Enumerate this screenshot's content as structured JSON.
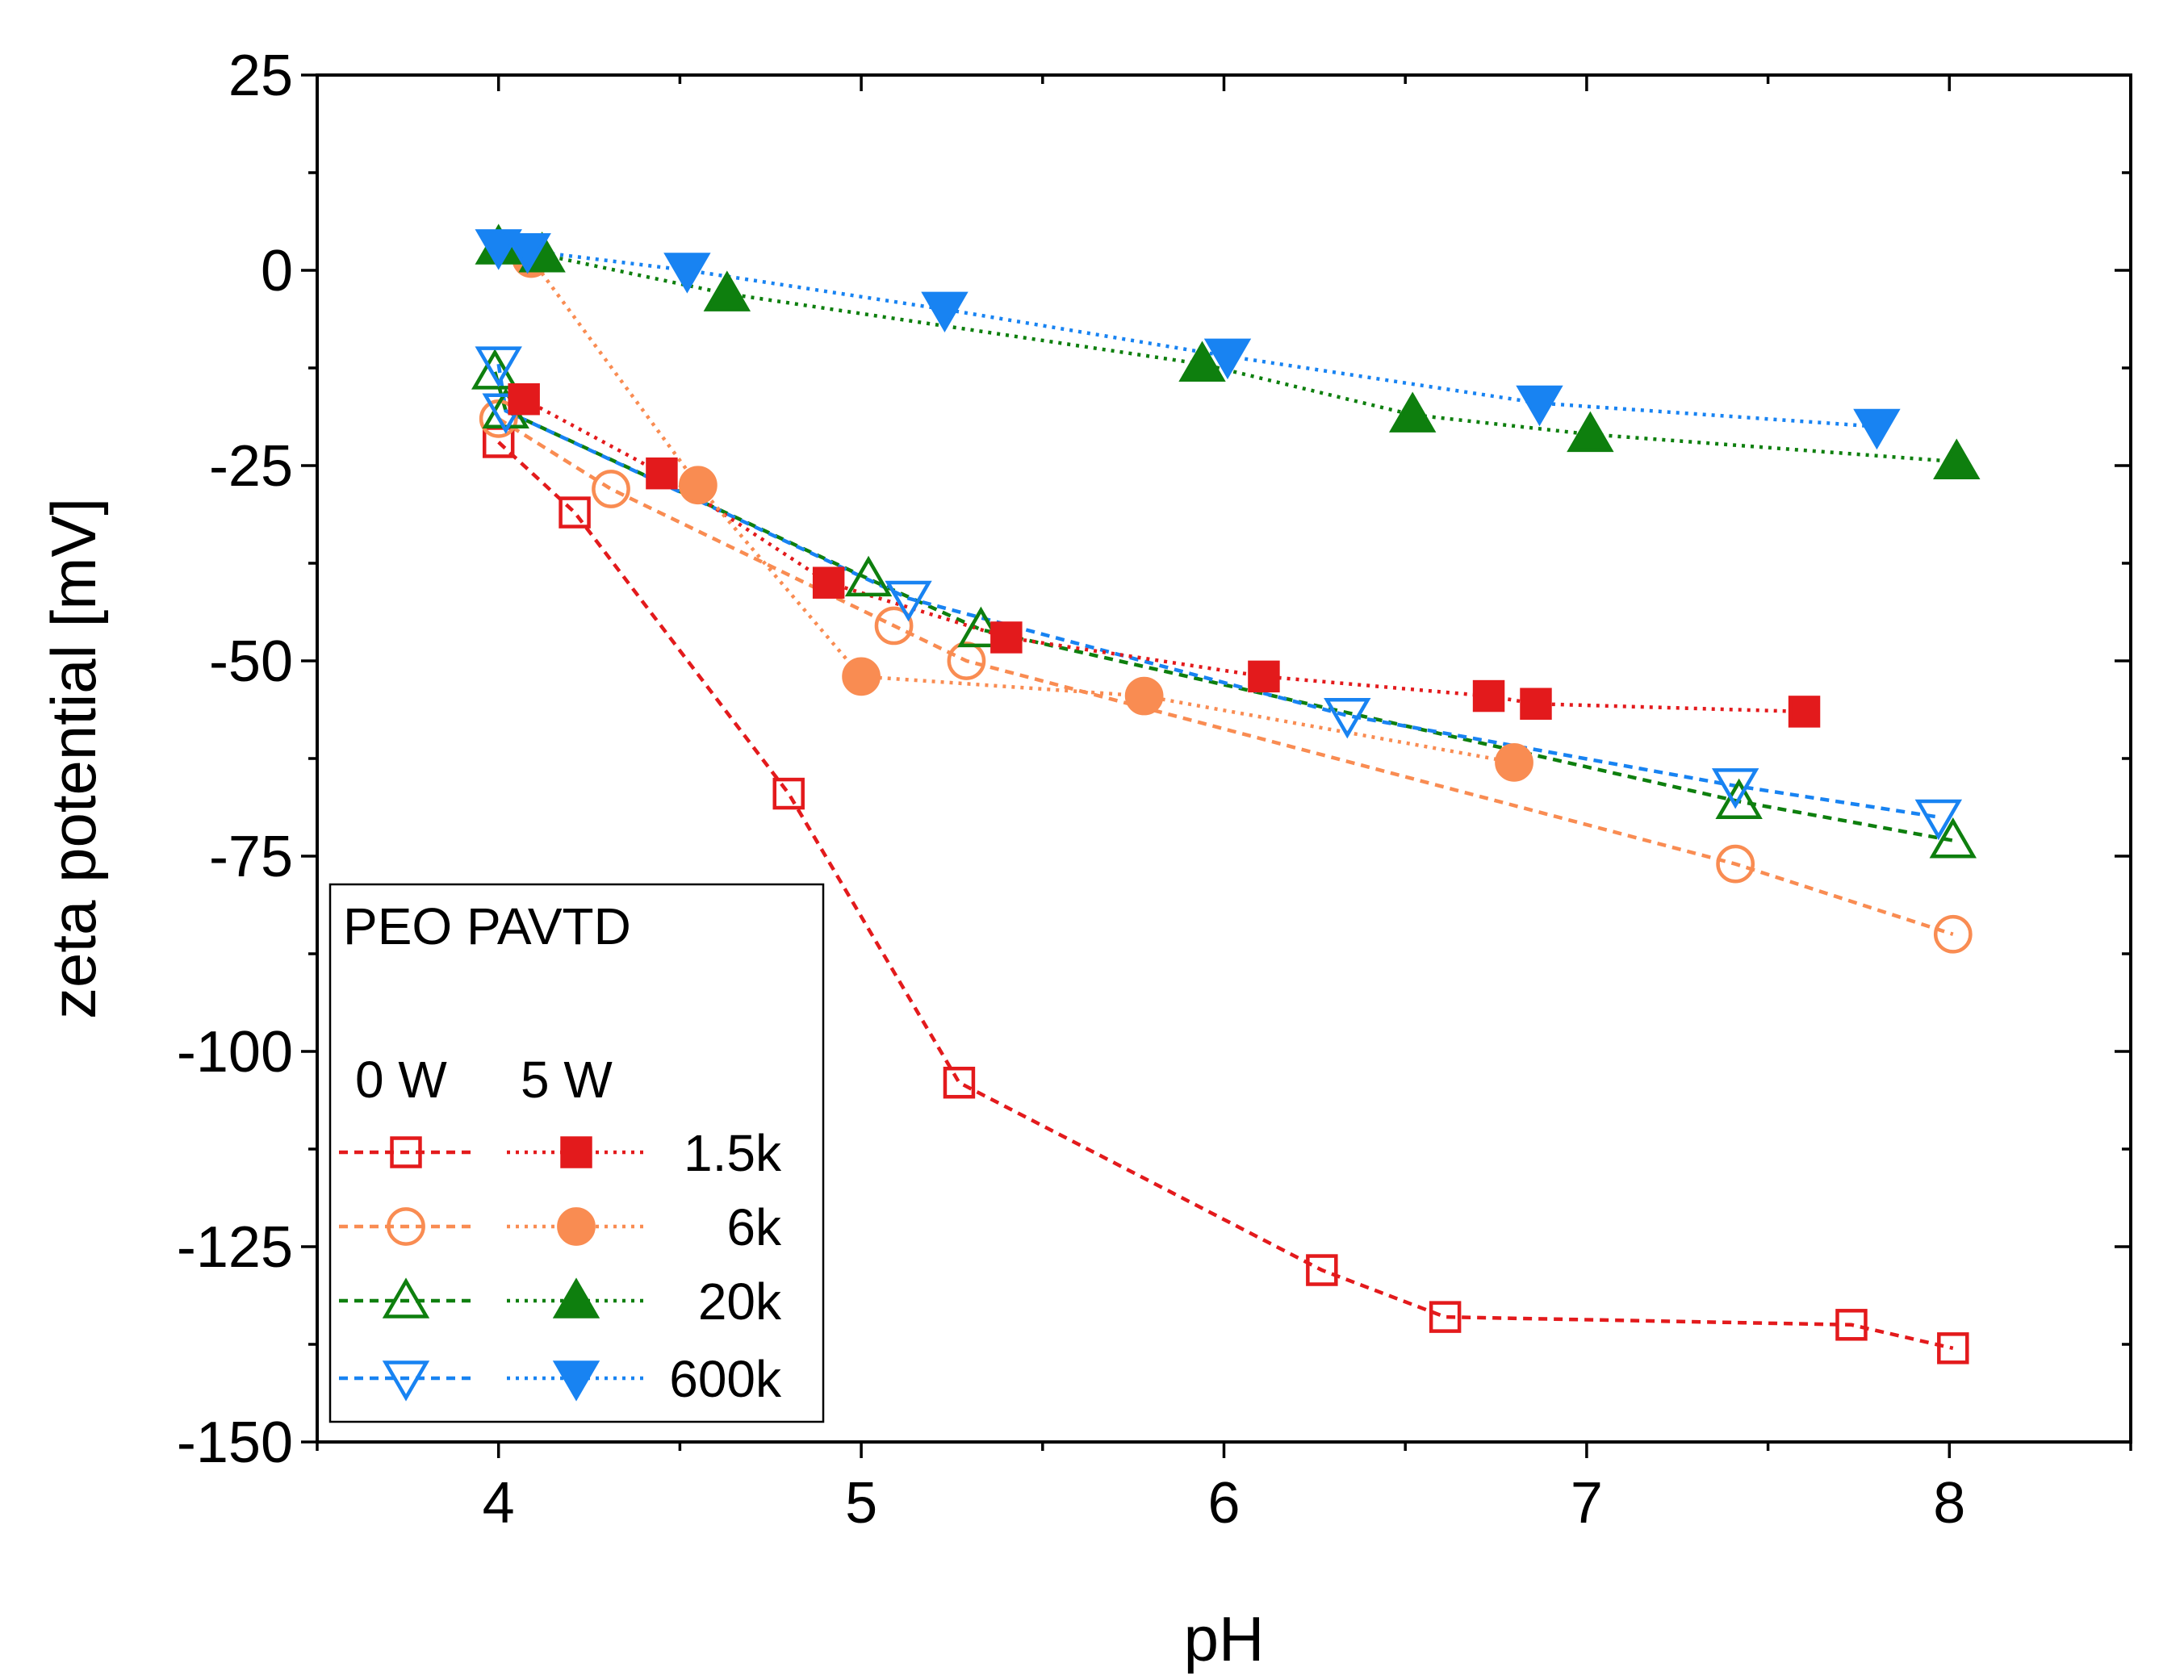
{
  "chart_data": {
    "type": "line",
    "title": "",
    "xlabel": "pH",
    "ylabel": "zeta potential [mV]",
    "xlim": [
      3.5,
      8.5
    ],
    "ylim": [
      -150,
      25
    ],
    "xticks": [
      4,
      5,
      6,
      7,
      8
    ],
    "xtick_labels": [
      "4",
      "5",
      "6",
      "7",
      "8"
    ],
    "yticks": [
      25,
      0,
      -25,
      -50,
      -75,
      -100,
      -125,
      -150
    ],
    "ytick_labels": [
      "25",
      "0",
      "-25",
      "-50",
      "-75",
      "-100",
      "-125",
      "-150"
    ],
    "legend": {
      "placement": "bottom-left",
      "title": "PEO PAVTD",
      "column_headers": [
        "0 W",
        "5 W"
      ],
      "row_labels": [
        "1.5k",
        "6k",
        "20k",
        "600k"
      ]
    },
    "colors": {
      "red": "#e31a1c",
      "orange": "#f98c52",
      "green": "#0e7f0e",
      "blue": "#1883f2"
    },
    "series": [
      {
        "name": "1.5k 0 W",
        "color": "#e31a1c",
        "marker": "square",
        "filled": false,
        "line": "dashed",
        "x": [
          4.0,
          4.21,
          4.8,
          5.27,
          6.27,
          6.61,
          7.73,
          8.01
        ],
        "y": [
          -22,
          -31,
          -67,
          -104,
          -128,
          -134,
          -135,
          -138
        ]
      },
      {
        "name": "6k 0 W",
        "color": "#f98c52",
        "marker": "circle",
        "filled": false,
        "line": "dashed",
        "x": [
          4.0,
          4.31,
          5.09,
          5.29,
          7.41,
          8.01
        ],
        "y": [
          -19,
          -28,
          -45.5,
          -50,
          -76,
          -85
        ]
      },
      {
        "name": "20k 0 W",
        "color": "#0e7f0e",
        "marker": "triangle-up",
        "filled": false,
        "line": "dashed",
        "x": [
          3.99,
          4.02,
          5.02,
          5.33,
          7.42,
          8.01
        ],
        "y": [
          -13,
          -18,
          -39.5,
          -46,
          -68,
          -73
        ]
      },
      {
        "name": "600k 0 W",
        "color": "#1883f2",
        "marker": "triangle-down",
        "filled": false,
        "line": "dashed",
        "x": [
          4.0,
          4.02,
          5.13,
          6.34,
          7.41,
          7.97
        ],
        "y": [
          -12,
          -18,
          -42,
          -57,
          -66,
          -70
        ]
      },
      {
        "name": "1.5k 5 W",
        "color": "#e31a1c",
        "marker": "square",
        "filled": true,
        "line": "dotted",
        "x": [
          4.07,
          4.45,
          4.91,
          5.4,
          6.11,
          6.73,
          6.86,
          7.6
        ],
        "y": [
          -16.5,
          -26,
          -40,
          -47,
          -52,
          -54.5,
          -55.5,
          -56.5
        ]
      },
      {
        "name": "6k 5 W",
        "color": "#f98c52",
        "marker": "circle",
        "filled": true,
        "line": "dotted",
        "x": [
          4.09,
          4.55,
          5.0,
          5.78,
          6.8
        ],
        "y": [
          1.5,
          -27.5,
          -52,
          -54.5,
          -63
        ]
      },
      {
        "name": "20k 5 W",
        "color": "#0e7f0e",
        "marker": "triangle-up",
        "filled": true,
        "line": "dotted",
        "x": [
          4.0,
          4.12,
          4.63,
          5.94,
          6.52,
          7.01,
          8.02
        ],
        "y": [
          3,
          2,
          -3,
          -12,
          -18.5,
          -21,
          -24.5
        ]
      },
      {
        "name": "600k 5 W",
        "color": "#1883f2",
        "marker": "triangle-down",
        "filled": true,
        "line": "dotted",
        "x": [
          4.0,
          4.08,
          4.52,
          5.23,
          6.01,
          6.87,
          7.8
        ],
        "y": [
          3,
          2.5,
          0,
          -5,
          -11,
          -17,
          -20
        ]
      }
    ]
  }
}
